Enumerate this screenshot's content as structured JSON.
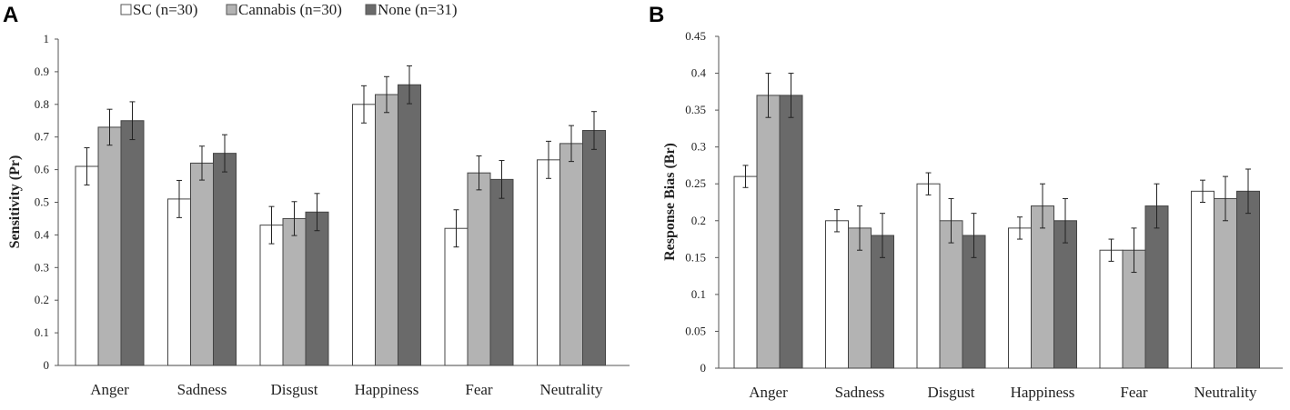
{
  "legend": {
    "items": [
      {
        "label": "SC (n=30)",
        "color": "#ffffff"
      },
      {
        "label": "Cannabis (n=30)",
        "color": "#b3b3b3"
      },
      {
        "label": "None (n=31)",
        "color": "#6a6a6a"
      }
    ]
  },
  "chart_data": [
    {
      "panel": "A",
      "type": "bar",
      "ylabel": "Sensitivity (Pr)",
      "xlabel": "",
      "categories": [
        "Anger",
        "Sadness",
        "Disgust",
        "Happiness",
        "Fear",
        "Neutrality"
      ],
      "ylim": [
        0,
        1
      ],
      "yticks": [
        "0",
        "0.1",
        "0.2",
        "0.3",
        "0.4",
        "0.5",
        "0.6",
        "0.7",
        "0.8",
        "0.9",
        "1"
      ],
      "series": [
        {
          "name": "SC (n=30)",
          "color": "#ffffff",
          "values": [
            0.61,
            0.51,
            0.43,
            0.8,
            0.42,
            0.63
          ],
          "errors": [
            0.057,
            0.057,
            0.057,
            0.057,
            0.057,
            0.057
          ]
        },
        {
          "name": "Cannabis (n=30)",
          "color": "#b3b3b3",
          "values": [
            0.73,
            0.62,
            0.45,
            0.83,
            0.59,
            0.68
          ],
          "errors": [
            0.055,
            0.052,
            0.052,
            0.055,
            0.052,
            0.055
          ]
        },
        {
          "name": "None (n=31)",
          "color": "#6a6a6a",
          "values": [
            0.75,
            0.65,
            0.47,
            0.86,
            0.57,
            0.72
          ],
          "errors": [
            0.058,
            0.057,
            0.057,
            0.058,
            0.058,
            0.058
          ]
        }
      ]
    },
    {
      "panel": "B",
      "type": "bar",
      "ylabel": "Response Bias (Br)",
      "xlabel": "",
      "categories": [
        "Anger",
        "Sadness",
        "Disgust",
        "Happiness",
        "Fear",
        "Neutrality"
      ],
      "ylim": [
        0,
        0.45
      ],
      "yticks": [
        "0",
        "0.05",
        "0.1",
        "0.15",
        "0.2",
        "0.25",
        "0.3",
        "0.35",
        "0.4",
        "0.45"
      ],
      "series": [
        {
          "name": "SC (n=30)",
          "color": "#ffffff",
          "values": [
            0.26,
            0.2,
            0.25,
            0.19,
            0.16,
            0.24
          ],
          "errors": [
            0.015,
            0.015,
            0.015,
            0.015,
            0.015,
            0.015
          ]
        },
        {
          "name": "Cannabis (n=30)",
          "color": "#b3b3b3",
          "values": [
            0.37,
            0.19,
            0.2,
            0.22,
            0.16,
            0.23
          ],
          "errors": [
            0.03,
            0.03,
            0.03,
            0.03,
            0.03,
            0.03
          ]
        },
        {
          "name": "None (n=31)",
          "color": "#6a6a6a",
          "values": [
            0.37,
            0.18,
            0.18,
            0.2,
            0.22,
            0.24
          ],
          "errors": [
            0.03,
            0.03,
            0.03,
            0.03,
            0.03,
            0.03
          ]
        }
      ]
    }
  ]
}
